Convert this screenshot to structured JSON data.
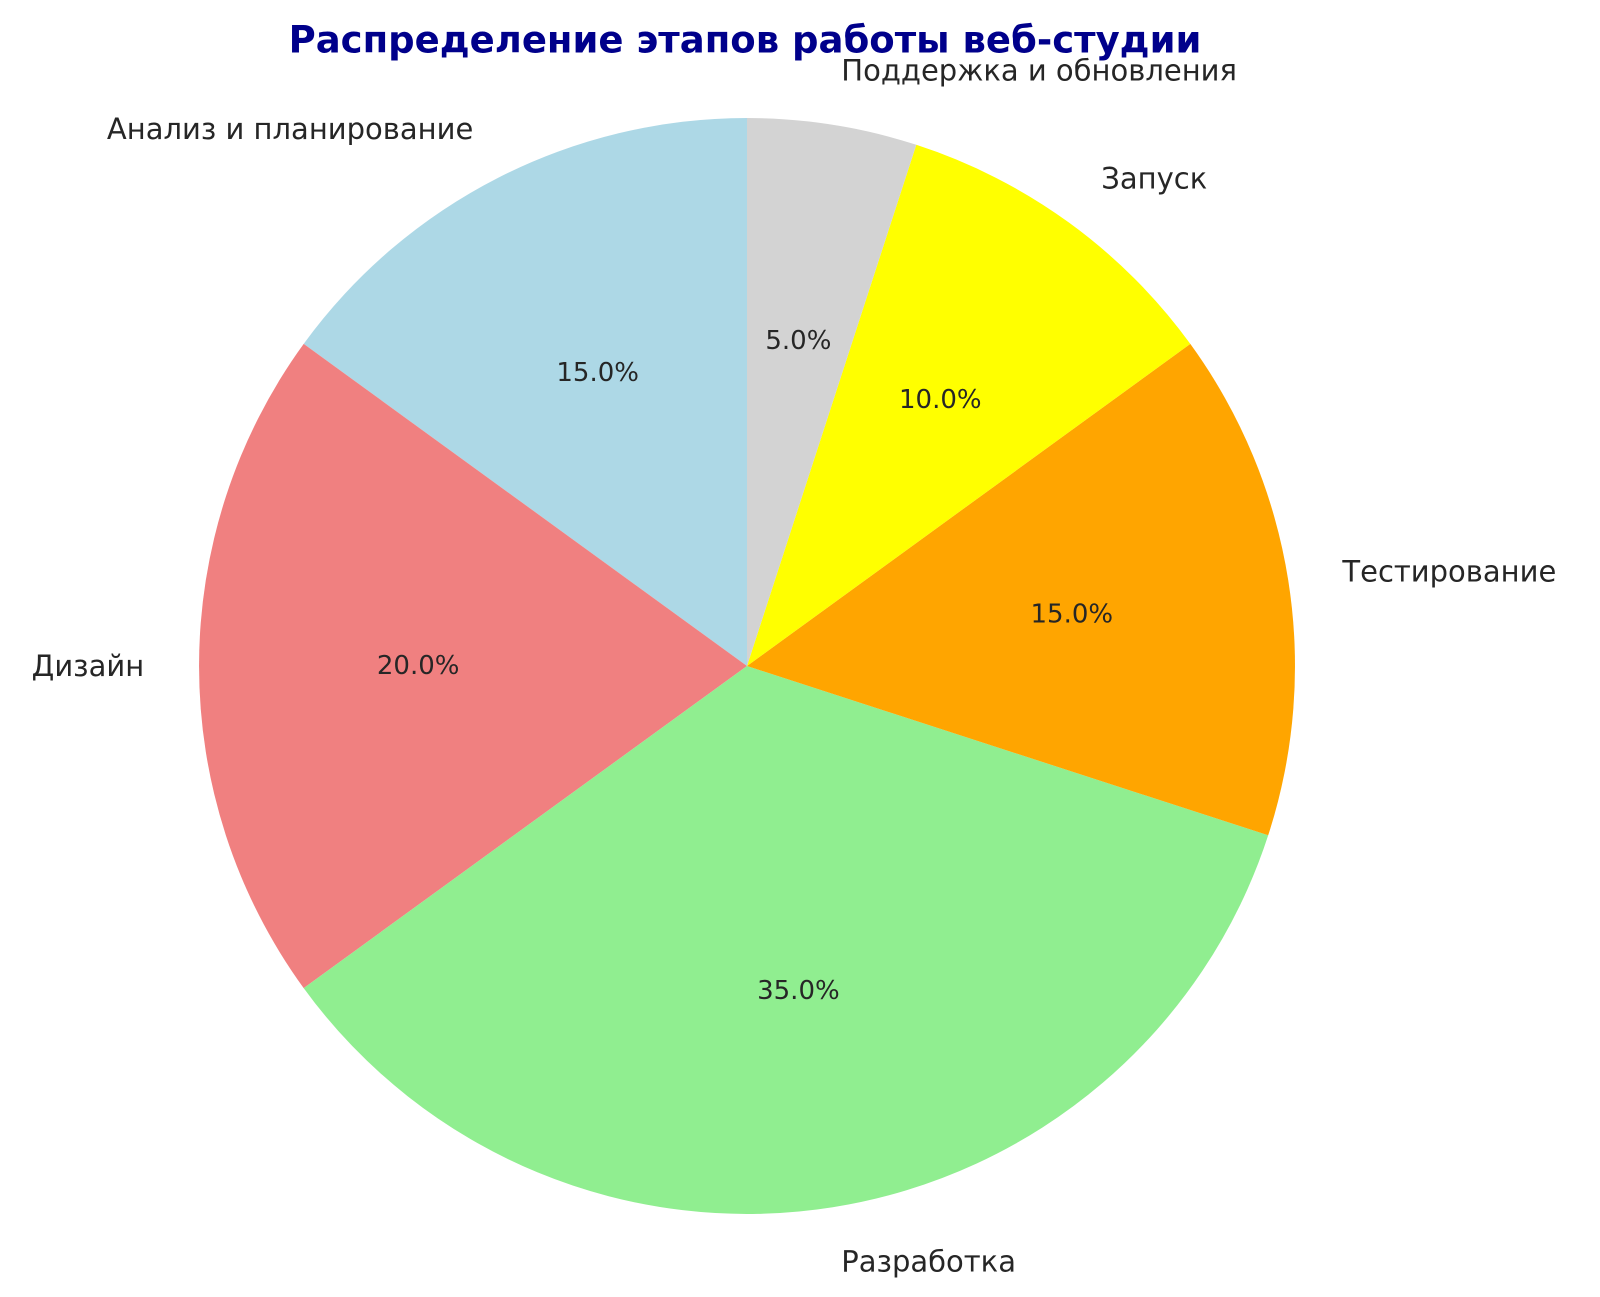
{
  "figure": {
    "background_color": "#ffffff",
    "title_color": "#00008b",
    "text_color": "#262626"
  },
  "chart_data": {
    "type": "pie",
    "title": "Распределение этапов работы веб-студии",
    "labels": [
      "Анализ и планирование",
      "Дизайн",
      "Разработка",
      "Тестирование",
      "Запуск",
      "Поддержка и обновления"
    ],
    "values": [
      15,
      20,
      35,
      15,
      10,
      5
    ],
    "pct_labels": [
      "15.0%",
      "20.0%",
      "35.0%",
      "15.0%",
      "10.0%",
      "5.0%"
    ],
    "colors": [
      "#add8e6",
      "#f08080",
      "#90ee90",
      "#ffa500",
      "#ffff00",
      "#d3d3d3"
    ],
    "start_angle": 90,
    "direction": "counterclockwise",
    "label_distance": 1.1,
    "pct_distance": 0.6,
    "legend": "none",
    "grid": "off"
  }
}
